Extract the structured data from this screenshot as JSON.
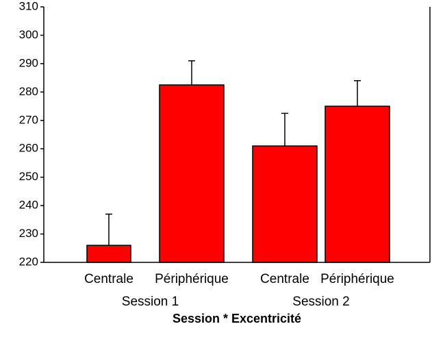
{
  "chart_data": {
    "type": "bar",
    "categories": [
      "Centrale",
      "Périphérique",
      "Centrale",
      "Périphérique"
    ],
    "groups": [
      "Session 1",
      "Session 2"
    ],
    "x_label": "Session * Excentricité",
    "values": [
      226,
      282.5,
      261,
      275
    ],
    "errors": [
      11,
      8.5,
      11.5,
      9
    ],
    "color": "#ff0000",
    "ylim": [
      220,
      310
    ],
    "yticks": [
      220,
      230,
      240,
      250,
      260,
      270,
      280,
      290,
      300,
      310
    ]
  }
}
